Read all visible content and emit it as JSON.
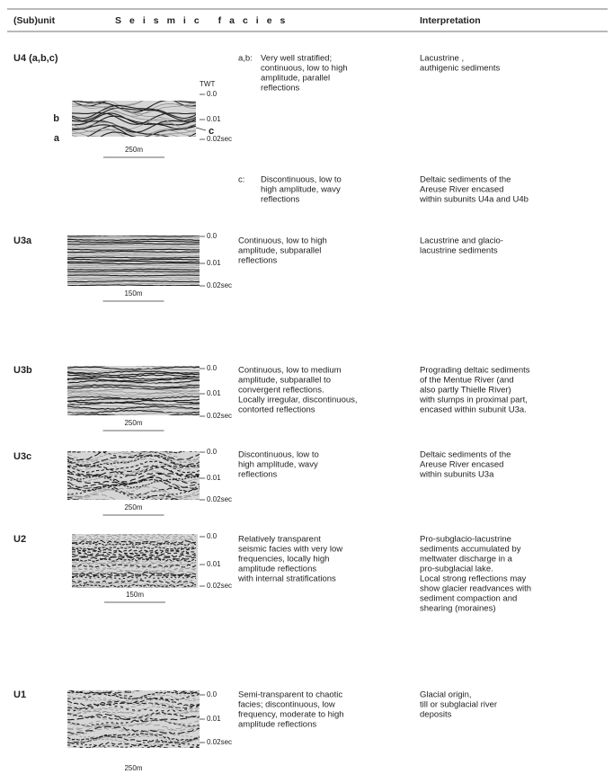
{
  "header": {
    "subunit": "(Sub)unit",
    "facies": "Seismic facies",
    "interpretation": "Interpretation"
  },
  "rows": [
    {
      "unit": "U4 (a,b,c)",
      "twt": "TWT",
      "markers": [
        "b",
        "a",
        "c"
      ],
      "ticks": [
        "0.0",
        "0.01",
        "0.02sec"
      ],
      "scale": "250m",
      "entries": [
        {
          "key": "a,b:",
          "text": [
            "Very well stratified;",
            "continuous, low to high",
            "amplitude, parallel",
            "reflections"
          ],
          "interpretation": [
            "Lacustrine ,",
            "authigenic sediments"
          ]
        },
        {
          "key": "c:",
          "text": [
            "Discontinuous, low to",
            "high amplitude, wavy",
            "reflections"
          ],
          "interpretation": [
            "Deltaic sediments of the",
            "Areuse River encased",
            "within subunits U4a and U4b"
          ]
        }
      ]
    },
    {
      "unit": "U3a",
      "ticks": [
        "0.0",
        "0.01",
        "0.02sec"
      ],
      "scale": "150m",
      "entries": [
        {
          "text": [
            "Continuous, low to high",
            "amplitude, subparallel",
            "reflections"
          ],
          "interpretation": [
            "Lacustrine and glacio-",
            "lacustrine sediments"
          ]
        }
      ]
    },
    {
      "unit": "U3b",
      "ticks": [
        "0.0",
        "0.01",
        "0.02sec"
      ],
      "scale": "250m",
      "entries": [
        {
          "text": [
            "Continuous, low to medium",
            " amplitude, subparallel to",
            "convergent reflections.",
            "Locally irregular, discontinuous,",
            "contorted reflections"
          ],
          "interpretation": [
            "Prograding deltaic sediments",
            "of the Mentue River (and",
            "also partly Thielle River)",
            "with slumps in proximal part,",
            "encased within subunit U3a."
          ]
        }
      ]
    },
    {
      "unit": "U3c",
      "ticks": [
        "0.0",
        "0.01",
        "0.02sec"
      ],
      "scale": "250m",
      "entries": [
        {
          "text": [
            "Discontinuous, low to",
            "high amplitude, wavy",
            "reflections"
          ],
          "interpretation": [
            "Deltaic sediments of the",
            "Areuse River encased",
            "within subunits U3a"
          ]
        }
      ]
    },
    {
      "unit": "U2",
      "ticks": [
        "0.0",
        "0.01",
        "0.02sec"
      ],
      "scale": "150m",
      "entries": [
        {
          "text": [
            "Relatively transparent",
            "seismic facies with very low",
            "frequencies, locally high",
            "amplitude reflections",
            "with internal stratifications"
          ],
          "interpretation": [
            "Pro-subglacio-lacustrine",
            "sediments accumulated by",
            "meltwater discharge in a",
            "pro-subglacial lake.",
            "Local strong reflections may",
            "show glacier readvances with",
            "sediment compaction and",
            "shearing (moraines)"
          ]
        }
      ]
    },
    {
      "unit": "U1",
      "ticks": [
        "0.0",
        "0.01",
        "0.02sec"
      ],
      "scale": "250m",
      "entries": [
        {
          "text": [
            "Semi-transparent to chaotic",
            "facies; discontinuous, low",
            "frequency, moderate to high",
            "amplitude reflections"
          ],
          "interpretation": [
            "Glacial origin,",
            "till or subglacial river",
            "deposits"
          ]
        }
      ]
    }
  ]
}
